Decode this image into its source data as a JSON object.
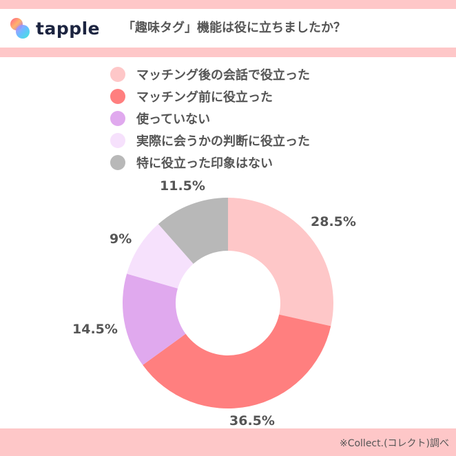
{
  "header": {
    "logo_text": "tapple",
    "title": "「趣味タグ」機能は役に立ちましたか？"
  },
  "legend": {
    "items": [
      {
        "label": "マッチング後の会話で役立った",
        "color": "#fec7c8"
      },
      {
        "label": "マッチング前に役立った",
        "color": "#ff7f7f"
      },
      {
        "label": "使っていない",
        "color": "#e0a9ee"
      },
      {
        "label": "実際に会うかの判断に役立った",
        "color": "#f6e1fc"
      },
      {
        "label": "特に役立った印象はない",
        "color": "#b8b8b8"
      }
    ]
  },
  "labels": {
    "s0": "28.5%",
    "s1": "36.5%",
    "s2": "14.5%",
    "s3": "9%",
    "s4": "11.5%"
  },
  "footer": {
    "note": "※Collect.(コレクト)調べ"
  },
  "colors": {
    "band": "#fec7c8",
    "text": "#555555",
    "logo_text": "#1c2440"
  },
  "chart_data": {
    "type": "pie",
    "variant": "donut",
    "title": "「趣味タグ」機能は役に立ちましたか？",
    "categories": [
      "マッチング後の会話で役立った",
      "マッチング前に役立った",
      "使っていない",
      "実際に会うかの判断に役立った",
      "特に役立った印象はない"
    ],
    "values": [
      28.5,
      36.5,
      14.5,
      9,
      11.5
    ],
    "unit": "%",
    "colors": [
      "#fec7c8",
      "#ff7f7f",
      "#e0a9ee",
      "#f6e1fc",
      "#b8b8b8"
    ],
    "start_angle": "12 o'clock",
    "direction": "clockwise",
    "legend_position": "top",
    "source": "※Collect.(コレクト)調べ"
  }
}
